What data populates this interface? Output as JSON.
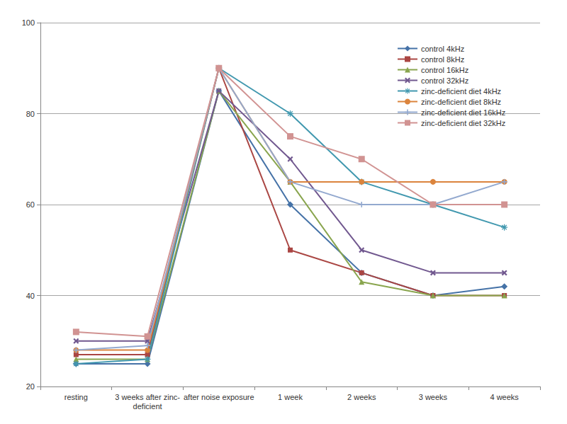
{
  "chart_data": {
    "type": "line",
    "categories": [
      "resting",
      "3 weeks after zinc-\ndeficient",
      "after noise exposure",
      "1 week",
      "2 weeks",
      "3 weeks",
      "4 weeks"
    ],
    "ylim": [
      20,
      100
    ],
    "yticks": [
      20,
      40,
      60,
      80,
      100
    ],
    "grid": true,
    "legend": "top-right",
    "series": [
      {
        "name": "control 4kHz",
        "color": "#4572A7",
        "marker": "diamond",
        "values": [
          25,
          25,
          85,
          60,
          45,
          40,
          42
        ]
      },
      {
        "name": "control 8kHz",
        "color": "#AA4643",
        "marker": "square",
        "values": [
          27,
          27,
          90,
          50,
          45,
          40,
          40
        ]
      },
      {
        "name": "control 16kHz",
        "color": "#89A54E",
        "marker": "triangle",
        "values": [
          26,
          26,
          85,
          65,
          43,
          40,
          40
        ]
      },
      {
        "name": "control 32kHz",
        "color": "#71588F",
        "marker": "x",
        "values": [
          30,
          30,
          85,
          70,
          50,
          45,
          45
        ]
      },
      {
        "name": "zinc-deficient diet 4kHz",
        "color": "#4198AF",
        "marker": "asterisk",
        "values": [
          25,
          26,
          90,
          80,
          65,
          60,
          55
        ]
      },
      {
        "name": "zinc-deficient diet 8kHz",
        "color": "#DB843D",
        "marker": "circle",
        "values": [
          28,
          28,
          90,
          65,
          65,
          65,
          65
        ]
      },
      {
        "name": "zinc-deficient diet 16kHz",
        "color": "#93A9CF",
        "marker": "plus",
        "values": [
          28,
          29,
          90,
          65,
          60,
          60,
          65
        ]
      },
      {
        "name": "zinc-deficient diet 32kHz",
        "color": "#D19392",
        "marker": "dash",
        "values": [
          32,
          31,
          90,
          75,
          70,
          60,
          60
        ]
      }
    ]
  }
}
